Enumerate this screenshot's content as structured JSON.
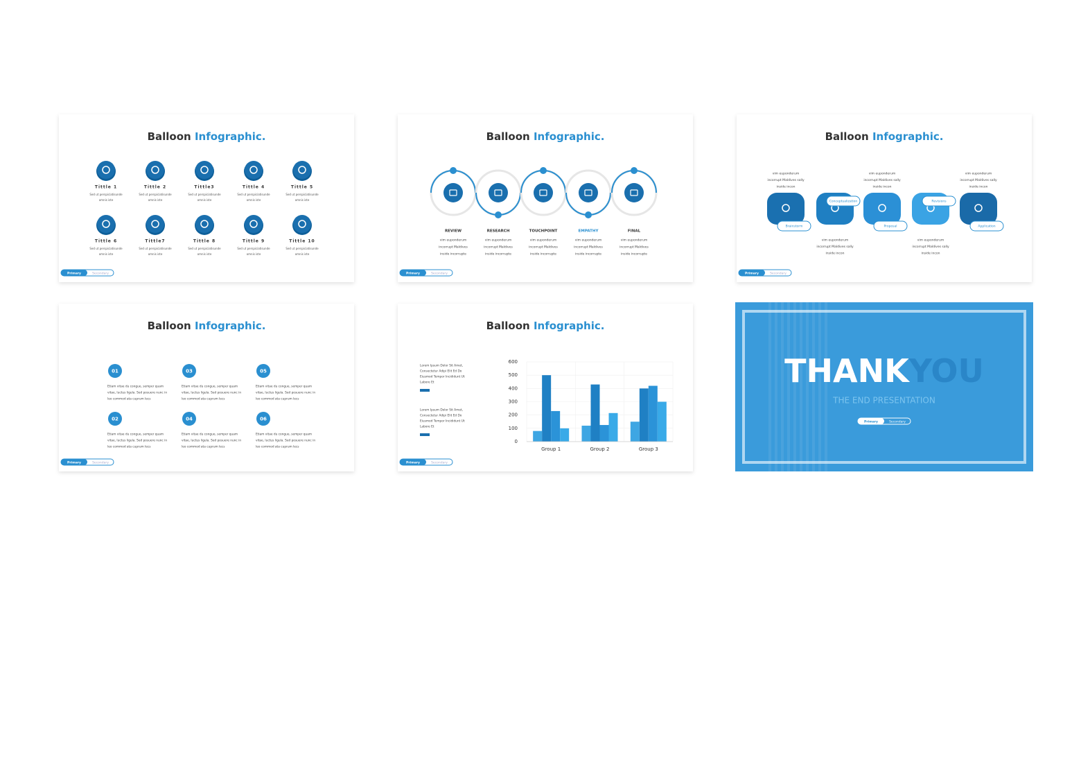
{
  "slides": [
    {
      "title": "Balloon",
      "title_accent": "Infographic.",
      "items": [
        {
          "label": "Tittle 1",
          "text": [
            "Sed ut perspiciatisunde",
            "omnis iste"
          ]
        },
        {
          "label": "Tittle 2",
          "text": [
            "Sed ut perspiciatisunde",
            "omnis iste"
          ]
        },
        {
          "label": "Tittle3",
          "text": [
            "Sed ut perspiciatisunde",
            "omnis iste"
          ]
        },
        {
          "label": "Tittle 4",
          "text": [
            "Sed ut perspiciatisunde",
            "omnis iste"
          ]
        },
        {
          "label": "Tittle 5",
          "text": [
            "Sed ut perspiciatisunde",
            "omnis iste"
          ]
        },
        {
          "label": "Tittle 6",
          "text": [
            "Sed ut perspiciatisunde",
            "omnis iste"
          ]
        },
        {
          "label": "Tittle7",
          "text": [
            "Sed ut perspiciatisunde",
            "omnis iste"
          ]
        },
        {
          "label": "Tittle 8",
          "text": [
            "Sed ut perspiciatisunde",
            "omnis iste"
          ]
        },
        {
          "label": "Tittle 9",
          "text": [
            "Sed ut perspiciatisunde",
            "omnis iste"
          ]
        },
        {
          "label": "Tittle 10",
          "text": [
            "Sed ut perspiciatisunde",
            "omnis iste"
          ]
        }
      ],
      "buttons": [
        "Primary",
        "Secondary"
      ]
    },
    {
      "title": "Balloon",
      "title_accent": "Infographic.",
      "steps": [
        {
          "label": "REVIEW",
          "text": [
            "vim euponderum",
            "incorrupt  Maldives",
            "inside incorrupte"
          ]
        },
        {
          "label": "RESEARCH",
          "text": [
            "vim euponderum",
            "incorrupt  Maldives",
            "inside incorrupte"
          ]
        },
        {
          "label": "TOUCHPOINT",
          "text": [
            "vim euponderum",
            "incorrupt  Maldives",
            "inside incorrupte"
          ]
        },
        {
          "label": "EMPATHY",
          "text": [
            "vim euponderum",
            "incorrupt  Maldives",
            "inside incorrupte"
          ]
        },
        {
          "label": "FINAL",
          "text": [
            "vim euponderum",
            "incorrupt  Maldives",
            "inside incorrupte"
          ]
        }
      ],
      "buttons": [
        "Primary",
        "Secondary"
      ]
    },
    {
      "title": "Balloon",
      "title_accent": "Infographic.",
      "stages": [
        {
          "tag": "Brainstorm",
          "text": [
            "vim euponderum",
            "incorrupt Maldives sally",
            "inside incon"
          ]
        },
        {
          "tag": "Conceptualization",
          "text": [
            "vim euponderum",
            "incorrupt Maldives sally",
            "inside incon"
          ]
        },
        {
          "tag": "Proposal",
          "text": [
            "vim euponderum",
            "incorrupt Maldives sally",
            "inside incon"
          ]
        },
        {
          "tag": "Revisions",
          "text": [
            "vim euponderum",
            "incorrupt Maldives sally",
            "inside incon"
          ]
        },
        {
          "tag": "Application",
          "text": [
            "vim euponderum",
            "incorrupt Maldives sally",
            "inside incon"
          ]
        }
      ],
      "buttons": [
        "Primary",
        "Secondary"
      ]
    },
    {
      "title": "Balloon",
      "title_accent": "Infographic.",
      "points": [
        {
          "number": "01",
          "text": [
            "Etiam vitae du congue, semper quam",
            "vitae, luctus ligula. Sed posuere nunc in",
            "leo commod ata cuprum lecs"
          ]
        },
        {
          "number": "02",
          "text": [
            "Etiam vitae du congue, semper quam",
            "vitae, luctus ligula. Sed posuere nunc in",
            "leo commod ata cuprum lecs"
          ]
        },
        {
          "number": "03",
          "text": [
            "Etiam vitae du congue, semper quam",
            "vitae, luctus ligula. Sed posuere nunc in",
            "leo commod ata cuprum lecs"
          ]
        },
        {
          "number": "04",
          "text": [
            "Etiam vitae du congue, semper quam",
            "vitae, luctus ligula. Sed posuere nunc in",
            "leo commod ata cuprum lecs"
          ]
        },
        {
          "number": "05",
          "text": [
            "Etiam vitae du congue, semper quam",
            "vitae, luctus ligula. Sed posuere nunc in",
            "leo commod ata cuprum lecs"
          ]
        },
        {
          "number": "06",
          "text": [
            "Etiam vitae du congue, semper quam",
            "vitae, luctus ligula. Sed posuere nunc in",
            "leo commod ata cuprum lecs"
          ]
        }
      ],
      "buttons": [
        "Primary",
        "Secondary"
      ]
    },
    {
      "title": "Balloon",
      "title_accent": "Infographic.",
      "notes": [
        [
          "Lorem  Ipsum Dolor Sit Amet,",
          "Consectetur Adipi Elit Ed Do",
          "Eiusmod Tempor Incididunt Ut",
          "Labore Et"
        ],
        [
          "Lorem  Ipsum Dolor Sit Amet,",
          "Consectetur Adipi Elit Ed Do",
          "Eiusmod Tempor Incididunt Ut",
          "Labore Et"
        ]
      ],
      "buttons": [
        "Primary",
        "Secondary"
      ]
    },
    {
      "title": "THANK",
      "title_accent": "YOU",
      "subtitle": "THE END PRESENTATION",
      "buttons": [
        "Primary",
        "Secondary"
      ]
    }
  ],
  "chart_data": {
    "type": "bar",
    "categories": [
      "Group 1",
      "Group 2",
      "Group 3"
    ],
    "series": [
      {
        "color": "#3ea6e3",
        "values": [
          80,
          120,
          150
        ]
      },
      {
        "color": "#1f80c4",
        "values": [
          500,
          430,
          400
        ]
      },
      {
        "color": "#2b93d8",
        "values": [
          230,
          125,
          420
        ]
      },
      {
        "color": "#39aae8",
        "values": [
          100,
          215,
          300
        ]
      }
    ],
    "ylim": [
      0,
      600
    ],
    "yticks": [
      0,
      100,
      200,
      300,
      400,
      500,
      600
    ],
    "grid": true
  }
}
